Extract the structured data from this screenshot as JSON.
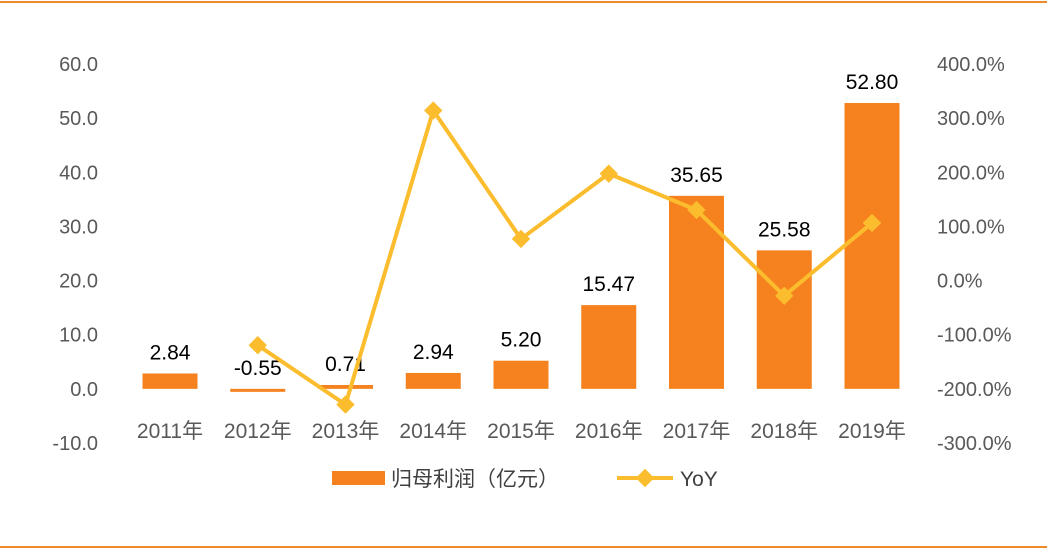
{
  "chart_data": {
    "type": "bar+line",
    "categories": [
      "2011年",
      "2012年",
      "2013年",
      "2014年",
      "2015年",
      "2016年",
      "2017年",
      "2018年",
      "2019年"
    ],
    "series": [
      {
        "name": "归母利润（亿元）",
        "type": "bar",
        "axis": "left",
        "values": [
          2.84,
          -0.55,
          0.71,
          2.94,
          5.2,
          15.47,
          35.65,
          25.58,
          52.8
        ],
        "labels": [
          "2.84",
          "-0.55",
          "0.71",
          "2.94",
          "5.20",
          "15.47",
          "35.65",
          "25.58",
          "52.80"
        ],
        "color": "#f5821f"
      },
      {
        "name": "YoY",
        "type": "line",
        "axis": "right",
        "values": [
          null,
          -119.4,
          -229.1,
          314.1,
          76.9,
          197.5,
          130.4,
          -28.2,
          106.4
        ],
        "color": "#fbbc2d"
      }
    ],
    "left_axis": {
      "ylim": [
        -10,
        60
      ],
      "ticks": [
        "-10.0",
        "0.0",
        "10.0",
        "20.0",
        "30.0",
        "40.0",
        "50.0",
        "60.0"
      ]
    },
    "right_axis": {
      "ylim": [
        -300,
        400
      ],
      "ticks": [
        "-300.0%",
        "-200.0%",
        "-100.0%",
        "0.0%",
        "100.0%",
        "200.0%",
        "300.0%",
        "400.0%"
      ]
    },
    "legend": "bottom",
    "grid": false
  }
}
